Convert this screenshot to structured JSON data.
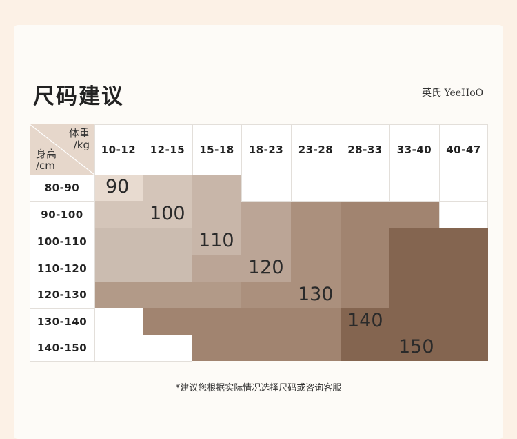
{
  "title": "尺码建议",
  "brand": "英氏 YeeHoO",
  "corner": {
    "weight_label": "体重",
    "weight_unit": "/kg",
    "height_label": "身高",
    "height_unit": "/cm"
  },
  "columns": [
    "10-12",
    "12-15",
    "15-18",
    "18-23",
    "23-28",
    "28-33",
    "33-40",
    "40-47"
  ],
  "rows": [
    "80-90",
    "90-100",
    "100-110",
    "110-120",
    "120-130",
    "130-140",
    "140-150"
  ],
  "sizes": [
    "90",
    "100",
    "110",
    "120",
    "130",
    "140",
    "150"
  ],
  "colors": {
    "size_90": "#e8dbd0",
    "size_100": "#d4c5b9",
    "size_110": "#c8b6a9",
    "size_120": "#bba596",
    "size_130": "#ab907d",
    "size_140": "#a18470",
    "size_150": "#846550"
  },
  "footnote": "*建议您根据实际情况选择尺码或咨询客服"
}
